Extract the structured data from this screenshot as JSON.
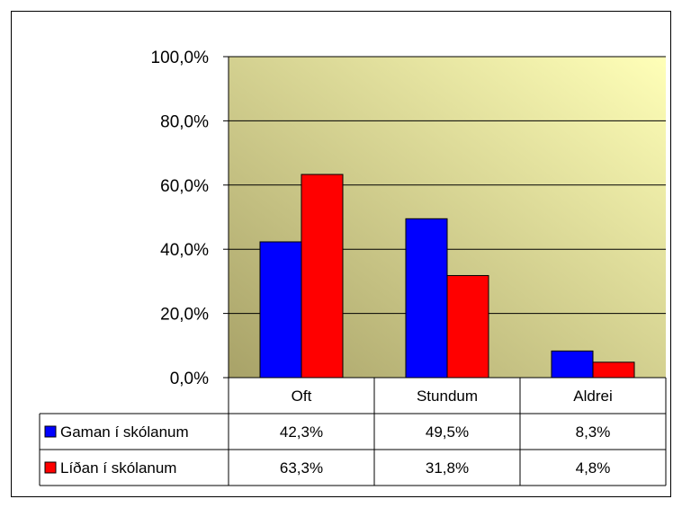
{
  "chart_data": {
    "type": "bar",
    "categories": [
      "Oft",
      "Stundum",
      "Aldrei"
    ],
    "series": [
      {
        "name": "Gaman í skólanum",
        "color": "#0000ff",
        "values": [
          42.3,
          49.5,
          8.3
        ],
        "labels": [
          "42,3%",
          "49,5%",
          "8,3%"
        ]
      },
      {
        "name": "Líðan í skólanum",
        "color": "#ff0000",
        "values": [
          63.3,
          31.8,
          4.8
        ],
        "labels": [
          "63,3%",
          "31,8%",
          "4,8%"
        ]
      }
    ],
    "y_ticks": [
      "0,0%",
      "20,0%",
      "40,0%",
      "60,0%",
      "80,0%",
      "100,0%"
    ],
    "ylim": [
      0,
      100
    ],
    "grid": true,
    "legend": "data-table",
    "plot_background": [
      "#a8a268",
      "#ffffb8"
    ]
  }
}
